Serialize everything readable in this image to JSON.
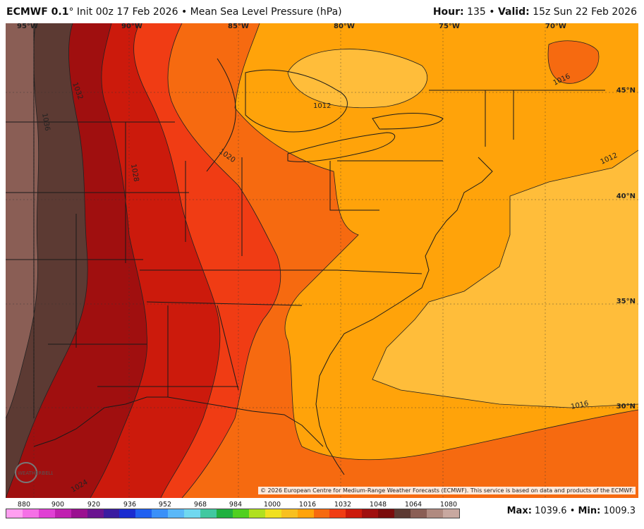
{
  "header": {
    "model": "ECMWF 0.1",
    "degree": "°",
    "init_text": "Init 00z 17 Feb 2026",
    "separator": "•",
    "field": "Mean Sea Level Pressure (hPa)",
    "hour_label": "Hour:",
    "hour_value": "135",
    "valid_label": "Valid:",
    "valid_value": "15z Sun 22 Feb 2026"
  },
  "map": {
    "lon_labels": [
      "95°W",
      "90°W",
      "85°W",
      "80°W",
      "75°W",
      "70°W"
    ],
    "lat_labels": [
      "45°N",
      "40°N",
      "35°N",
      "30°N"
    ],
    "contour_labels": [
      "1036",
      "1032",
      "1028",
      "1024",
      "1020",
      "1016",
      "1016",
      "1012",
      "1012"
    ],
    "fill_colors": {
      "p1036_plus": "#8a5e55",
      "p1032": "#5c3a33",
      "p1028": "#a00f0f",
      "p1024": "#cc1a0c",
      "p1020": "#f03c14",
      "p1016": "#f66a10",
      "p1012": "#ffa30a",
      "p1008": "#ffbd3a",
      "p1004": "#ffc950"
    },
    "credit": "© 2026 European Centre for Medium-Range Weather Forecasts (ECMWF). This service is based on data and products of the ECMWF.",
    "logo_text": "WEATHERBELL"
  },
  "colorbar": {
    "labels": [
      "880",
      "900",
      "920",
      "936",
      "952",
      "968",
      "984",
      "1000",
      "1016",
      "1032",
      "1048",
      "1064",
      "1080"
    ],
    "colors": [
      "#ff9ff0",
      "#f570e6",
      "#e040d4",
      "#c020b0",
      "#9a1090",
      "#6a1490",
      "#3a1ca0",
      "#1a2cd0",
      "#2060f0",
      "#3a90f8",
      "#5ab8f8",
      "#70d8f0",
      "#40c8a0",
      "#20b040",
      "#50d020",
      "#b0e020",
      "#f0e020",
      "#f8c020",
      "#ffa30a",
      "#f66a10",
      "#f03c14",
      "#cc1a0c",
      "#a00f0f",
      "#7a0c0c",
      "#5c3a33",
      "#8a5e55",
      "#b08a80",
      "#c8a8a0"
    ]
  },
  "stats": {
    "max_label": "Max:",
    "max_value": "1039.6",
    "sep": "•",
    "min_label": "Min:",
    "min_value": "1009.3"
  }
}
